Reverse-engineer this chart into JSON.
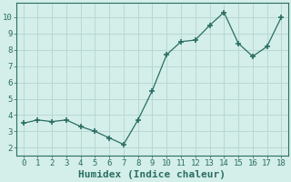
{
  "x": [
    0,
    1,
    2,
    3,
    4,
    5,
    6,
    7,
    8,
    9,
    10,
    11,
    12,
    13,
    14,
    15,
    16,
    17,
    18
  ],
  "y": [
    3.5,
    3.7,
    3.6,
    3.7,
    3.3,
    3.0,
    2.6,
    2.2,
    3.7,
    5.5,
    7.7,
    8.5,
    8.6,
    9.5,
    10.3,
    8.4,
    7.6,
    8.2,
    10.0
  ],
  "line_color": "#2a6e62",
  "marker_color": "#2a6e62",
  "bg_color": "#d4eeea",
  "grid_color": "#b8d8d4",
  "xlabel": "Humidex (Indice chaleur)",
  "xlabel_fontsize": 8,
  "xlabel_weight": "bold",
  "ylabel_ticks": [
    2,
    3,
    4,
    5,
    6,
    7,
    8,
    9,
    10
  ],
  "xticks": [
    0,
    1,
    2,
    3,
    4,
    5,
    6,
    7,
    8,
    9,
    10,
    11,
    12,
    13,
    14,
    15,
    16,
    17,
    18
  ],
  "ylim": [
    1.5,
    10.9
  ],
  "xlim": [
    -0.5,
    18.5
  ]
}
